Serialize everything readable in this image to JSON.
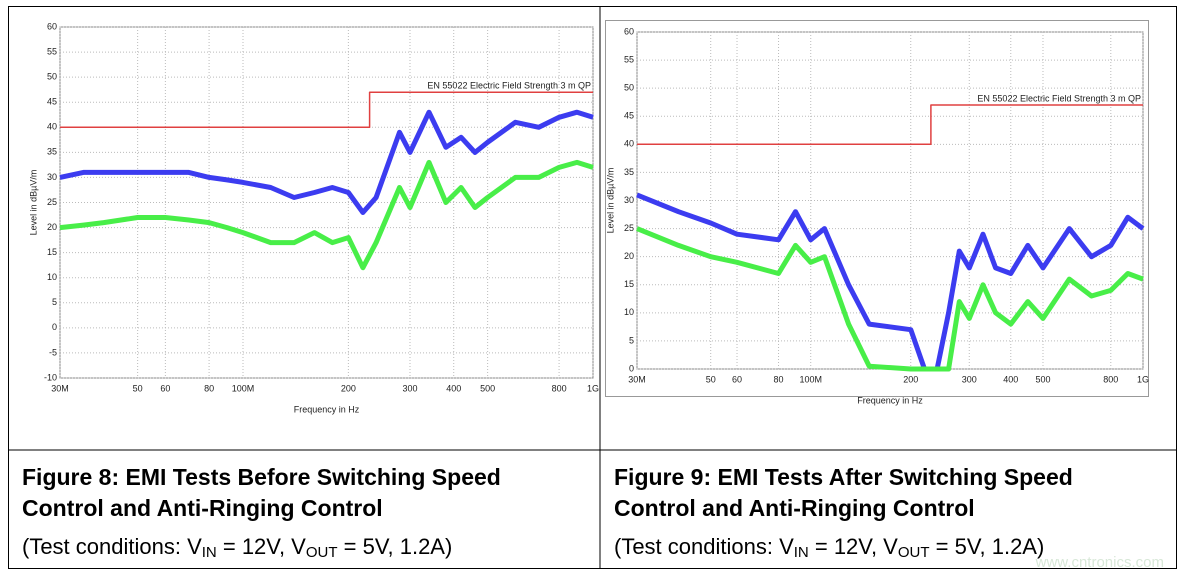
{
  "chart_data": [
    {
      "type": "line",
      "ylabel": "Level in dBµV/m",
      "xlabel": "Frequency in Hz",
      "xlog": true,
      "grid": true,
      "x": [
        30000000,
        35000000,
        40000000,
        50000000,
        60000000,
        70000000,
        80000000,
        90000000,
        100000000,
        120000000,
        140000000,
        160000000,
        180000000,
        200000000,
        220000000,
        240000000,
        280000000,
        300000000,
        340000000,
        380000000,
        420000000,
        460000000,
        500000000,
        600000000,
        700000000,
        800000000,
        900000000,
        1000000000
      ],
      "series": [
        {
          "color": "#3c3cf0",
          "values": [
            30,
            31,
            31,
            31,
            31,
            31,
            30,
            29.5,
            29,
            28,
            26,
            27,
            28,
            27,
            23,
            26,
            39,
            35,
            43,
            36,
            38,
            35,
            37,
            41,
            40,
            42,
            43,
            42
          ]
        },
        {
          "color": "#48ee48",
          "values": [
            20,
            20.5,
            21,
            22,
            22,
            21.5,
            21,
            20,
            19,
            17,
            17,
            19,
            17,
            18,
            12,
            17,
            28,
            24,
            33,
            25,
            28,
            24,
            26,
            30,
            30,
            32,
            33,
            32
          ]
        }
      ],
      "limit_line": {
        "label": "EN 55022 Electric Field Strength 3 m QP",
        "color": "#e04040",
        "x": [
          30000000,
          230000000,
          230000000,
          1000000000
        ],
        "values": [
          40,
          40,
          47,
          47
        ]
      },
      "xlim": [
        30000000,
        1000000000
      ],
      "xticks": [
        {
          "value": 30000000,
          "label": "30M"
        },
        {
          "value": 50000000,
          "label": "50"
        },
        {
          "value": 60000000,
          "label": "60"
        },
        {
          "value": 80000000,
          "label": "80"
        },
        {
          "value": 100000000,
          "label": "100M"
        },
        {
          "value": 200000000,
          "label": "200"
        },
        {
          "value": 300000000,
          "label": "300"
        },
        {
          "value": 400000000,
          "label": "400"
        },
        {
          "value": 500000000,
          "label": "500"
        },
        {
          "value": 800000000,
          "label": "800"
        },
        {
          "value": 1000000000,
          "label": "1G"
        }
      ],
      "ylim": [
        -10,
        60
      ],
      "yticks": [
        -10,
        -5,
        0,
        5,
        10,
        15,
        20,
        25,
        30,
        35,
        40,
        45,
        50,
        55,
        60
      ]
    },
    {
      "type": "line",
      "ylabel": "Level in dBµV/m",
      "xlabel": "Frequency in Hz",
      "xlog": true,
      "grid": true,
      "x": [
        30000000,
        40000000,
        50000000,
        60000000,
        80000000,
        90000000,
        100000000,
        110000000,
        130000000,
        150000000,
        200000000,
        220000000,
        240000000,
        260000000,
        280000000,
        300000000,
        330000000,
        360000000,
        400000000,
        450000000,
        500000000,
        600000000,
        700000000,
        800000000,
        900000000,
        1000000000
      ],
      "series": [
        {
          "color": "#3c3cf0",
          "values": [
            31,
            28,
            26,
            24,
            23,
            28,
            23,
            25,
            15,
            8,
            7,
            0,
            0,
            10,
            21,
            18,
            24,
            18,
            17,
            22,
            18,
            25,
            20,
            22,
            27,
            25
          ]
        },
        {
          "color": "#48ee48",
          "values": [
            25,
            22,
            20,
            19,
            17,
            22,
            19,
            20,
            8,
            0.5,
            0,
            0,
            0,
            0,
            12,
            9,
            15,
            10,
            8,
            12,
            9,
            16,
            13,
            14,
            17,
            16
          ]
        }
      ],
      "limit_line": {
        "label": "EN 55022 Electric Field Strength 3 m QP",
        "color": "#e04040",
        "x": [
          30000000,
          230000000,
          230000000,
          1000000000
        ],
        "values": [
          40,
          40,
          47,
          47
        ]
      },
      "xlim": [
        30000000,
        1000000000
      ],
      "xticks": [
        {
          "value": 30000000,
          "label": "30M"
        },
        {
          "value": 50000000,
          "label": "50"
        },
        {
          "value": 60000000,
          "label": "60"
        },
        {
          "value": 80000000,
          "label": "80"
        },
        {
          "value": 100000000,
          "label": "100M"
        },
        {
          "value": 200000000,
          "label": "200"
        },
        {
          "value": 300000000,
          "label": "300"
        },
        {
          "value": 400000000,
          "label": "400"
        },
        {
          "value": 500000000,
          "label": "500"
        },
        {
          "value": 800000000,
          "label": "800"
        },
        {
          "value": 1000000000,
          "label": "1G"
        }
      ],
      "ylim": [
        0,
        60
      ],
      "yticks": [
        0,
        5,
        10,
        15,
        20,
        25,
        30,
        35,
        40,
        45,
        50,
        55,
        60
      ]
    }
  ],
  "captions": [
    {
      "title": "Figure 8: EMI Tests Before Switching Speed Control and Anti-Ringing Control",
      "conditions": [
        "(Test conditions: V",
        "IN",
        " = 12V, V",
        "OUT",
        " = 5V, 1.2A)"
      ]
    },
    {
      "title": "Figure 9: EMI Tests After Switching Speed Control and Anti-Ringing Control",
      "conditions": [
        "(Test conditions: V",
        "IN",
        " = 12V, V",
        "OUT",
        " = 5V, 1.2A)"
      ]
    }
  ],
  "watermark": "www.cntronics.com"
}
